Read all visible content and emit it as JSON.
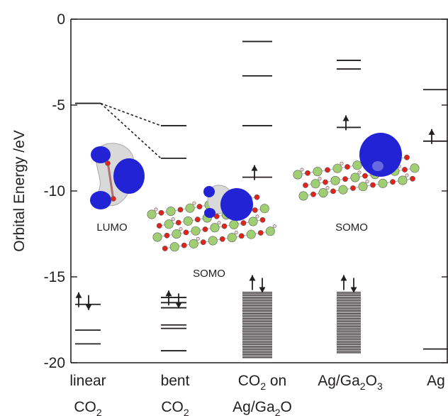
{
  "chart_data": {
    "type": "energy-level-diagram",
    "title": "",
    "ylabel": "Orbital Energy /eV",
    "xlabel": "",
    "ylim": [
      -20,
      0
    ],
    "yticks": [
      {
        "value": 0,
        "label": "0"
      },
      {
        "value": -5,
        "label": "-5"
      },
      {
        "value": -10,
        "label": "-10"
      },
      {
        "value": -15,
        "label": "-15"
      },
      {
        "value": -20,
        "label": "-20"
      }
    ],
    "grid": false,
    "categories": [
      {
        "line1": "linear",
        "line2": "CO",
        "line2_sub": "2",
        "line2_after": ""
      },
      {
        "line1": "bent",
        "line2": "CO",
        "line2_sub": "2",
        "line2_after": ""
      },
      {
        "line1": "CO",
        "line1_sub": "2",
        "line1_after": " on",
        "line2": "Ag/Ga",
        "line2_sub": "2",
        "line2_after": "O"
      },
      {
        "line1": "Ag/Ga",
        "line1_sub": "2",
        "line1_after": "O",
        "line1_sub2": "3",
        "line2": ""
      },
      {
        "line1": "Ag",
        "line2": ""
      }
    ],
    "series": [
      {
        "levels": [
          -4.9,
          -16.6,
          -18.1,
          -18.9
        ],
        "arrows": [
          {
            "energy": -16.6,
            "type": "pair"
          }
        ]
      },
      {
        "levels": [
          -6.2,
          -8.1,
          -16.2,
          -16.5,
          -16.8,
          -17.8,
          -18.0,
          -19.3
        ],
        "arrows": [
          {
            "energy": -16.5,
            "type": "pair"
          }
        ]
      },
      {
        "levels": [
          -1.3,
          -3.3,
          -6.2,
          -9.2
        ],
        "dense_band": [
          -15.9,
          -19.7
        ],
        "arrows": [
          {
            "energy": -9.2,
            "type": "up"
          },
          {
            "energy": -15.6,
            "type": "pair"
          }
        ]
      },
      {
        "levels": [
          -2.4,
          -2.9,
          -6.3
        ],
        "dense_band": [
          -15.9,
          -19.5
        ],
        "arrows": [
          {
            "energy": -6.3,
            "type": "up"
          },
          {
            "energy": -15.6,
            "type": "pair"
          }
        ]
      },
      {
        "levels": [
          -4.1,
          -7.1,
          -19.2
        ],
        "arrows": [
          {
            "energy": -7.1,
            "type": "up"
          }
        ]
      }
    ],
    "correlation_lines": [
      {
        "from_energy": -4.9,
        "to_energy": -6.2
      },
      {
        "from_energy": -4.9,
        "to_energy": -8.1
      }
    ],
    "insets": [
      {
        "label": "LUMO"
      },
      {
        "label": "SOMO"
      },
      {
        "label": "SOMO"
      }
    ]
  },
  "colors": {
    "ink": "#231f20",
    "orbital_lobe": "#2323d6",
    "orbital_lobe_light": "#d9d9d9",
    "ga_atom": "#9fcf72",
    "o_atom": "#e0241b",
    "h_atom": "#f4d6d6"
  }
}
